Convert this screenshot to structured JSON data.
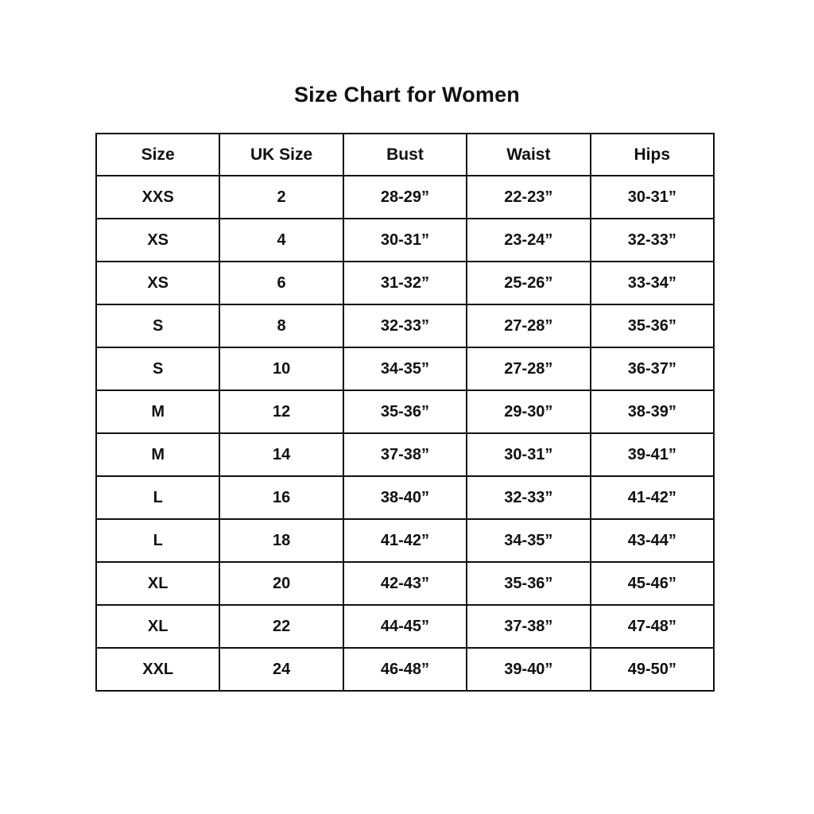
{
  "page": {
    "title": "Size Chart for Women"
  },
  "colors": {
    "background": "#ffffff",
    "text": "#111111",
    "border": "#111111"
  },
  "chart_data": {
    "type": "table",
    "title": "Size Chart for Women",
    "columns": [
      "Size",
      "UK Size",
      "Bust",
      "Waist",
      "Hips"
    ],
    "rows": [
      [
        "XXS",
        "2",
        "28-29”",
        "22-23”",
        "30-31”"
      ],
      [
        "XS",
        "4",
        "30-31”",
        "23-24”",
        "32-33”"
      ],
      [
        "XS",
        "6",
        "31-32”",
        "25-26”",
        "33-34”"
      ],
      [
        "S",
        "8",
        "32-33”",
        "27-28”",
        "35-36”"
      ],
      [
        "S",
        "10",
        "34-35”",
        "27-28”",
        "36-37”"
      ],
      [
        "M",
        "12",
        "35-36”",
        "29-30”",
        "38-39”"
      ],
      [
        "M",
        "14",
        "37-38”",
        "30-31”",
        "39-41”"
      ],
      [
        "L",
        "16",
        "38-40”",
        "32-33”",
        "41-42”"
      ],
      [
        "L",
        "18",
        "41-42”",
        "34-35”",
        "43-44”"
      ],
      [
        "XL",
        "20",
        "42-43”",
        "35-36”",
        "45-46”"
      ],
      [
        "XL",
        "22",
        "44-45”",
        "37-38”",
        "47-48”"
      ],
      [
        "XXL",
        "24",
        "46-48”",
        "39-40”",
        "49-50”"
      ]
    ],
    "layout": {
      "grid": true,
      "text_alignment": "center",
      "font_weight": "bold"
    }
  }
}
